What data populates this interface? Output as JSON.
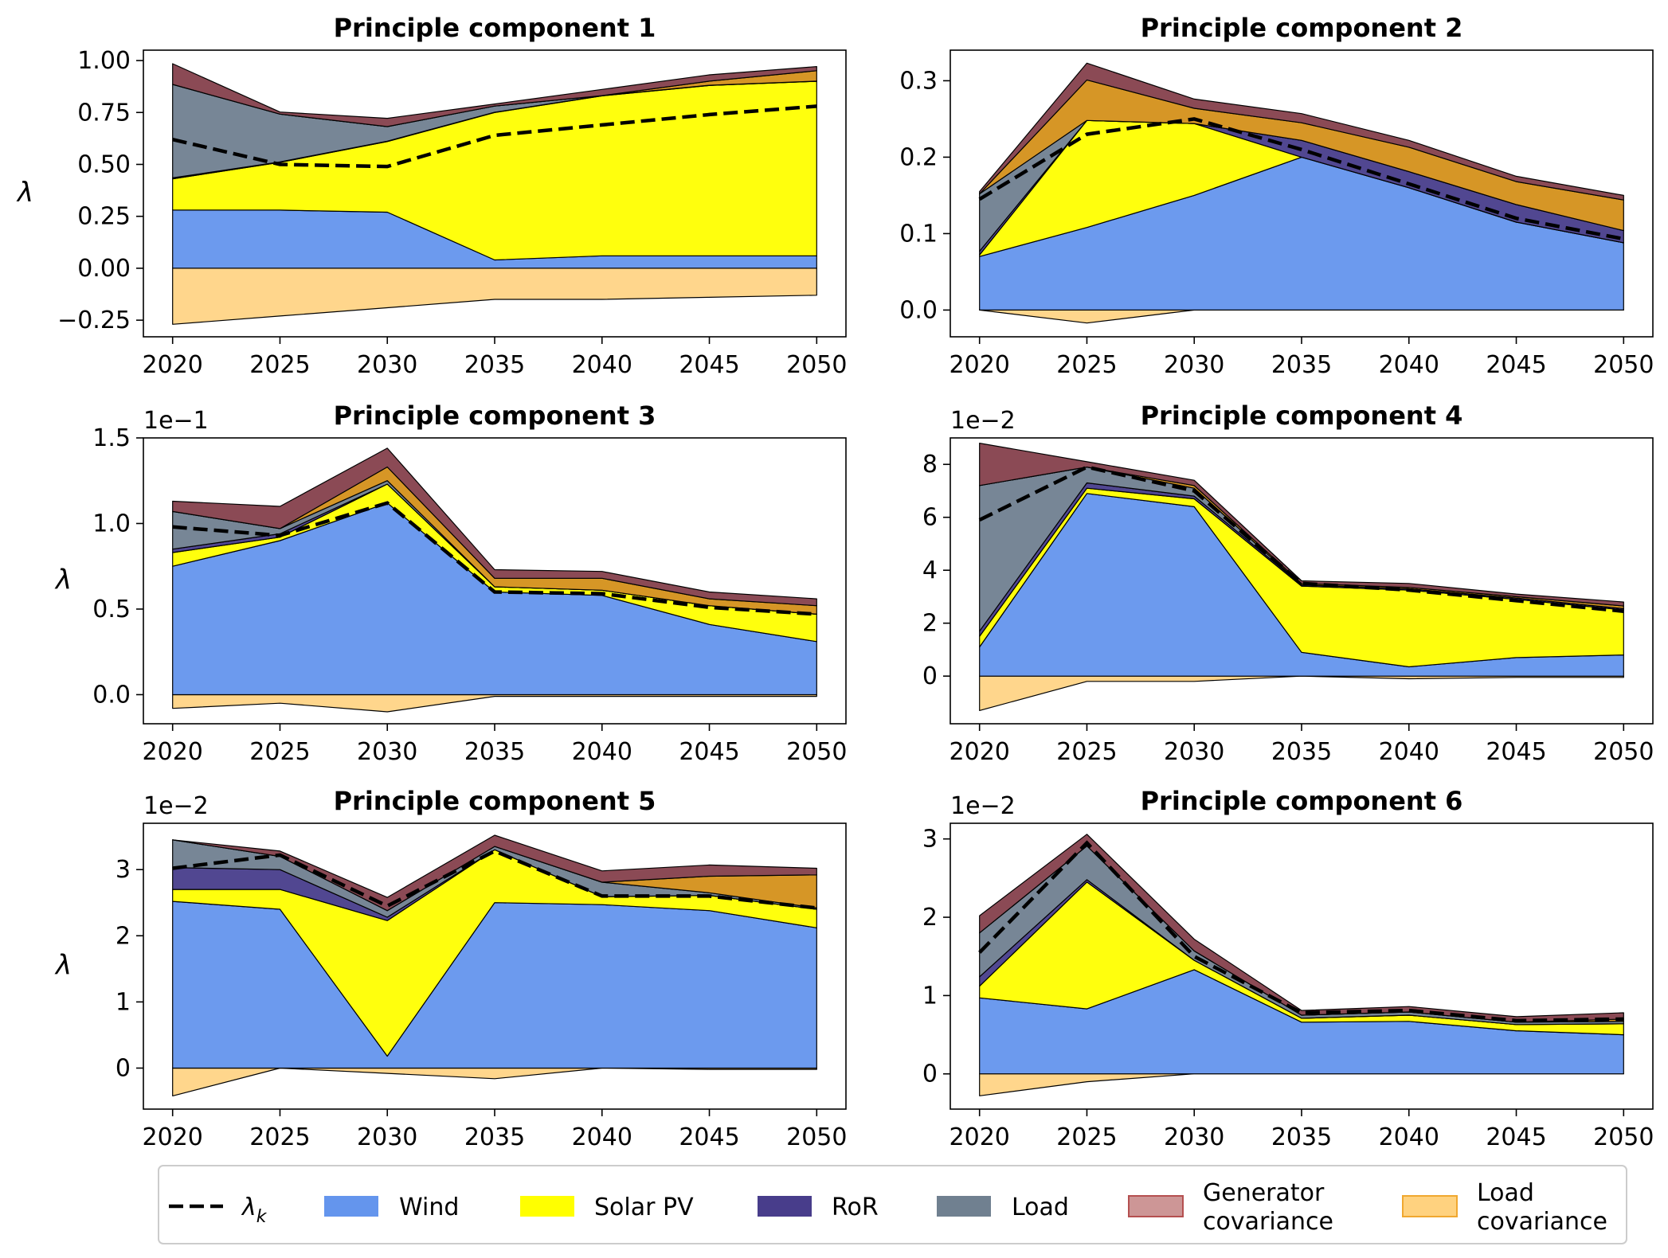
{
  "chart_data": [
    {
      "type": "area",
      "title": "Principle component 1",
      "ylabel": "λ",
      "multiplier": "",
      "x": [
        2020,
        2025,
        2030,
        2035,
        2040,
        2045,
        2050
      ],
      "ylim": [
        -0.33,
        1.05
      ],
      "yticks": [
        -0.25,
        0.0,
        0.25,
        0.5,
        0.75,
        1.0
      ],
      "ytick_labels": [
        "−0.25",
        "0.00",
        "0.25",
        "0.50",
        "0.75",
        "1.00"
      ],
      "neg_layers": [
        {
          "key": "load_cov",
          "values": [
            -0.27,
            -0.23,
            -0.19,
            -0.15,
            -0.15,
            -0.14,
            -0.13
          ]
        }
      ],
      "pos_layers": [
        {
          "key": "wind",
          "values": [
            0.28,
            0.28,
            0.27,
            0.04,
            0.06,
            0.06,
            0.06
          ]
        },
        {
          "key": "solar",
          "values": [
            0.15,
            0.23,
            0.34,
            0.71,
            0.77,
            0.82,
            0.84
          ]
        },
        {
          "key": "ror",
          "values": [
            0.005,
            0.002,
            0.002,
            0.001,
            0.001,
            0.001,
            0.001
          ]
        },
        {
          "key": "load",
          "values": [
            0.45,
            0.23,
            0.07,
            0.03,
            0.0,
            0.0,
            0.0
          ]
        },
        {
          "key": "load_cov_pos",
          "values": [
            0.0,
            0.0,
            0.0,
            0.0,
            0.0,
            0.02,
            0.05
          ]
        },
        {
          "key": "gen_cov",
          "values": [
            0.1,
            0.01,
            0.04,
            0.01,
            0.03,
            0.03,
            0.02
          ]
        }
      ],
      "lambda_k": [
        0.62,
        0.5,
        0.49,
        0.64,
        0.69,
        0.74,
        0.78
      ]
    },
    {
      "type": "area",
      "title": "Principle component 2",
      "ylabel": "",
      "multiplier": "",
      "x": [
        2020,
        2025,
        2030,
        2035,
        2040,
        2045,
        2050
      ],
      "ylim": [
        -0.035,
        0.34
      ],
      "yticks": [
        0.0,
        0.1,
        0.2,
        0.3
      ],
      "ytick_labels": [
        "0.0",
        "0.1",
        "0.2",
        "0.3"
      ],
      "neg_layers": [
        {
          "key": "load_cov",
          "values": [
            0.0,
            -0.017,
            0.0,
            0.0,
            0.0,
            0.0,
            0.0
          ]
        }
      ],
      "pos_layers": [
        {
          "key": "wind",
          "values": [
            0.07,
            0.108,
            0.15,
            0.2,
            0.16,
            0.115,
            0.088
          ]
        },
        {
          "key": "solar",
          "values": [
            0.002,
            0.14,
            0.094,
            0.0,
            0.0,
            0.0,
            0.0
          ]
        },
        {
          "key": "ror",
          "values": [
            0.005,
            0.0,
            0.0,
            0.022,
            0.021,
            0.023,
            0.016
          ]
        },
        {
          "key": "load",
          "values": [
            0.075,
            0.0,
            0.0,
            0.0,
            0.0,
            0.0,
            0.0
          ]
        },
        {
          "key": "load_cov_pos",
          "values": [
            0.0,
            0.053,
            0.02,
            0.023,
            0.032,
            0.03,
            0.04
          ]
        },
        {
          "key": "gen_cov",
          "values": [
            0.003,
            0.022,
            0.012,
            0.012,
            0.009,
            0.007,
            0.006
          ]
        }
      ],
      "lambda_k": [
        0.145,
        0.23,
        0.25,
        0.21,
        0.165,
        0.12,
        0.093
      ]
    },
    {
      "type": "area",
      "title": "Principle component 3",
      "ylabel": "λ",
      "multiplier": "1e−1",
      "x": [
        2020,
        2025,
        2030,
        2035,
        2040,
        2045,
        2050
      ],
      "ylim": [
        -0.17,
        1.5
      ],
      "yticks": [
        0.0,
        0.5,
        1.0,
        1.5
      ],
      "ytick_labels": [
        "0.0",
        "0.5",
        "1.0",
        "1.5"
      ],
      "neg_layers": [
        {
          "key": "load_cov",
          "values": [
            -0.08,
            -0.05,
            -0.1,
            -0.01,
            -0.01,
            -0.01,
            -0.01
          ]
        }
      ],
      "pos_layers": [
        {
          "key": "wind",
          "values": [
            0.75,
            0.9,
            1.12,
            0.6,
            0.58,
            0.41,
            0.31
          ]
        },
        {
          "key": "solar",
          "values": [
            0.08,
            0.02,
            0.11,
            0.03,
            0.03,
            0.11,
            0.16
          ]
        },
        {
          "key": "ror",
          "values": [
            0.02,
            0.02,
            0.0,
            0.0,
            0.0,
            0.0,
            0.0
          ]
        },
        {
          "key": "load",
          "values": [
            0.22,
            0.03,
            0.02,
            0.0,
            0.0,
            0.0,
            0.0
          ]
        },
        {
          "key": "load_cov_pos",
          "values": [
            0.0,
            0.0,
            0.08,
            0.05,
            0.07,
            0.04,
            0.05
          ]
        },
        {
          "key": "gen_cov",
          "values": [
            0.06,
            0.13,
            0.11,
            0.05,
            0.04,
            0.04,
            0.04
          ]
        }
      ],
      "lambda_k": [
        0.98,
        0.93,
        1.12,
        0.6,
        0.59,
        0.51,
        0.47
      ]
    },
    {
      "type": "area",
      "title": "Principle component 4",
      "ylabel": "",
      "multiplier": "1e−2",
      "x": [
        2020,
        2025,
        2030,
        2035,
        2040,
        2045,
        2050
      ],
      "ylim": [
        -1.8,
        9.0
      ],
      "yticks": [
        0,
        2,
        4,
        6,
        8
      ],
      "ytick_labels": [
        "0",
        "2",
        "4",
        "6",
        "8"
      ],
      "neg_layers": [
        {
          "key": "load_cov",
          "values": [
            -1.3,
            -0.2,
            -0.2,
            0.0,
            -0.1,
            -0.05,
            -0.05
          ]
        }
      ],
      "pos_layers": [
        {
          "key": "wind",
          "values": [
            1.1,
            6.9,
            6.4,
            0.9,
            0.35,
            0.7,
            0.8
          ]
        },
        {
          "key": "solar",
          "values": [
            0.4,
            0.2,
            0.3,
            2.5,
            2.9,
            2.2,
            1.7
          ]
        },
        {
          "key": "ror",
          "values": [
            0.2,
            0.2,
            0.1,
            0.05,
            0.05,
            0.05,
            0.05
          ]
        },
        {
          "key": "load",
          "values": [
            5.5,
            0.6,
            0.3,
            0.0,
            0.0,
            0.0,
            0.0
          ]
        },
        {
          "key": "load_cov_pos",
          "values": [
            0.0,
            0.0,
            0.1,
            0.05,
            0.05,
            0.05,
            0.1
          ]
        },
        {
          "key": "gen_cov",
          "values": [
            1.6,
            0.2,
            0.2,
            0.1,
            0.15,
            0.1,
            0.15
          ]
        }
      ],
      "lambda_k": [
        5.9,
        7.9,
        7.0,
        3.5,
        3.25,
        2.85,
        2.45
      ]
    },
    {
      "type": "area",
      "title": "Principle component 5",
      "ylabel": "λ",
      "multiplier": "1e−2",
      "x": [
        2020,
        2025,
        2030,
        2035,
        2040,
        2045,
        2050
      ],
      "ylim": [
        -0.62,
        3.7
      ],
      "yticks": [
        0,
        1,
        2,
        3
      ],
      "ytick_labels": [
        "0",
        "1",
        "2",
        "3"
      ],
      "neg_layers": [
        {
          "key": "load_cov",
          "values": [
            -0.42,
            0.0,
            -0.08,
            -0.16,
            0.0,
            -0.02,
            -0.02
          ]
        }
      ],
      "pos_layers": [
        {
          "key": "wind",
          "values": [
            2.52,
            2.4,
            0.18,
            2.5,
            2.47,
            2.38,
            2.12
          ]
        },
        {
          "key": "solar",
          "values": [
            0.18,
            0.3,
            2.05,
            0.8,
            0.12,
            0.23,
            0.28
          ]
        },
        {
          "key": "ror",
          "values": [
            0.33,
            0.3,
            0.05,
            0.0,
            0.0,
            0.0,
            0.0
          ]
        },
        {
          "key": "load",
          "values": [
            0.42,
            0.2,
            0.1,
            0.05,
            0.22,
            0.04,
            0.02
          ]
        },
        {
          "key": "load_cov_pos",
          "values": [
            0.0,
            0.0,
            0.0,
            0.0,
            0.0,
            0.25,
            0.5
          ]
        },
        {
          "key": "gen_cov",
          "values": [
            0.0,
            0.08,
            0.2,
            0.17,
            0.17,
            0.17,
            0.1
          ]
        }
      ],
      "lambda_k": [
        3.02,
        3.22,
        2.45,
        3.28,
        2.6,
        2.6,
        2.42
      ]
    },
    {
      "type": "area",
      "title": "Principle component 6",
      "ylabel": "",
      "multiplier": "1e−2",
      "x": [
        2020,
        2025,
        2030,
        2035,
        2040,
        2045,
        2050
      ],
      "ylim": [
        -0.45,
        3.2
      ],
      "yticks": [
        0,
        1,
        2,
        3
      ],
      "ytick_labels": [
        "0",
        "1",
        "2",
        "3"
      ],
      "neg_layers": [
        {
          "key": "load_cov",
          "values": [
            -0.28,
            -0.1,
            0.0,
            0.0,
            0.0,
            0.0,
            0.0
          ]
        }
      ],
      "pos_layers": [
        {
          "key": "wind",
          "values": [
            0.97,
            0.83,
            1.33,
            0.66,
            0.67,
            0.55,
            0.5
          ]
        },
        {
          "key": "solar",
          "values": [
            0.15,
            1.62,
            0.12,
            0.05,
            0.08,
            0.08,
            0.14
          ]
        },
        {
          "key": "ror",
          "values": [
            0.12,
            0.03,
            0.0,
            0.0,
            0.0,
            0.0,
            0.0
          ]
        },
        {
          "key": "load",
          "values": [
            0.56,
            0.43,
            0.12,
            0.04,
            0.04,
            0.03,
            0.03
          ]
        },
        {
          "key": "load_cov_pos",
          "values": [
            0.0,
            0.0,
            0.0,
            0.0,
            0.0,
            0.0,
            0.03
          ]
        },
        {
          "key": "gen_cov",
          "values": [
            0.22,
            0.15,
            0.15,
            0.06,
            0.07,
            0.07,
            0.08
          ]
        }
      ],
      "lambda_k": [
        1.55,
        2.95,
        1.5,
        0.78,
        0.81,
        0.68,
        0.7
      ]
    }
  ],
  "legend": {
    "items": [
      {
        "key": "lambda_k",
        "label": "λ_k",
        "style": "dashed-line"
      },
      {
        "key": "wind",
        "label": "Wind",
        "style": "patch"
      },
      {
        "key": "solar",
        "label": "Solar PV",
        "style": "patch"
      },
      {
        "key": "ror",
        "label": "RoR",
        "style": "patch"
      },
      {
        "key": "load",
        "label": "Load",
        "style": "patch"
      },
      {
        "key": "gen_cov",
        "label": "Generator\ncovariance",
        "style": "patch"
      },
      {
        "key": "load_cov",
        "label": "Load\ncovariance",
        "style": "patch"
      }
    ]
  },
  "colors": {
    "wind": "#6495ED",
    "solar": "#FFFF00",
    "ror": "#483D8B",
    "load": "#708090",
    "gen_cov": "#8B4A55",
    "gen_cov_legend": "#CD9696",
    "load_cov": "#FFD27F",
    "load_cov_pos": "#D4901A",
    "lambda_k": "#000000"
  }
}
